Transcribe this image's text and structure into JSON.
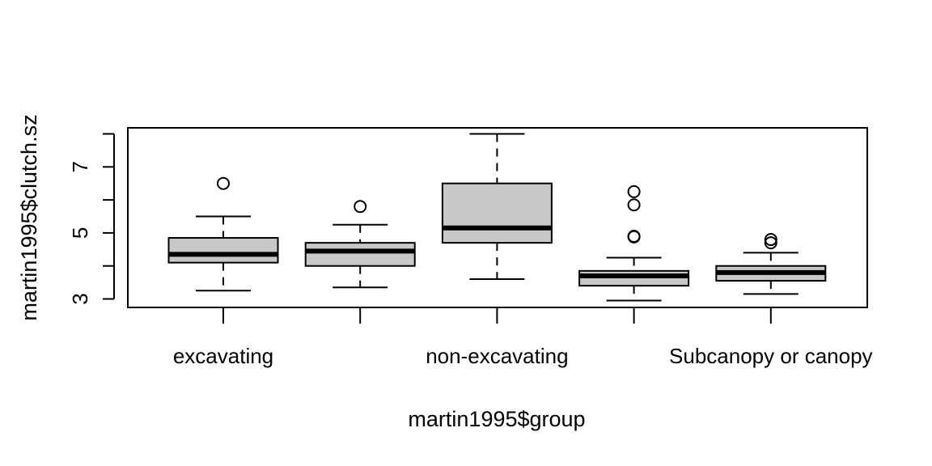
{
  "chart_data": {
    "type": "boxplot",
    "title": "",
    "xlabel": "martin1995$group",
    "ylabel": "martin1995$clutch.sz",
    "ylim": [
      2.75,
      8.25
    ],
    "yticks": [
      3,
      5,
      7
    ],
    "x_tick_labels_shown": [
      "excavating",
      "",
      "non-excavating",
      "",
      "Subcanopy or canopy"
    ],
    "box_fill": "#c8c8c8",
    "grid": false,
    "boxes": [
      {
        "whisker_low": 3.25,
        "q1": 4.1,
        "median": 4.35,
        "q3": 4.85,
        "whisker_high": 5.5,
        "outliers": [
          6.5
        ]
      },
      {
        "whisker_low": 3.35,
        "q1": 4.0,
        "median": 4.45,
        "q3": 4.7,
        "whisker_high": 5.25,
        "outliers": [
          5.8
        ]
      },
      {
        "whisker_low": 3.6,
        "q1": 4.7,
        "median": 5.15,
        "q3": 6.5,
        "whisker_high": 8.0,
        "outliers": []
      },
      {
        "whisker_low": 2.95,
        "q1": 3.4,
        "median": 3.7,
        "q3": 3.85,
        "whisker_high": 4.25,
        "outliers": [
          6.25,
          5.85,
          4.9,
          4.88
        ]
      },
      {
        "whisker_low": 3.15,
        "q1": 3.55,
        "median": 3.8,
        "q3": 4.0,
        "whisker_high": 4.4,
        "outliers": [
          4.8,
          4.7
        ]
      }
    ]
  }
}
